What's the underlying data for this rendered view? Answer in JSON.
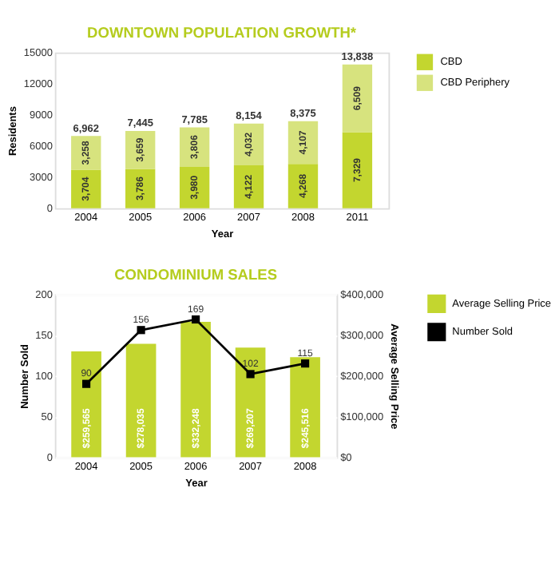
{
  "chart_data": [
    {
      "type": "bar",
      "title": "DOWNTOWN POPULATION GROWTH*",
      "xlabel": "Year",
      "ylabel": "Residents",
      "categories": [
        "2004",
        "2005",
        "2006",
        "2007",
        "2008",
        "2011"
      ],
      "stacked": true,
      "series": [
        {
          "name": "CBD",
          "color": "#c3d62f",
          "values": [
            3704,
            3786,
            3980,
            4122,
            4268,
            7329
          ],
          "value_labels": [
            "3,704",
            "3,786",
            "3,980",
            "4,122",
            "4,268",
            "7,329"
          ]
        },
        {
          "name": "CBD Periphery",
          "color": "#d7e37e",
          "values": [
            3258,
            3659,
            3806,
            4032,
            4107,
            6509
          ],
          "value_labels": [
            "3,258",
            "3,659",
            "3,806",
            "4,032",
            "4,107",
            "6,509"
          ]
        }
      ],
      "totals": [
        "6,962",
        "7,445",
        "7,785",
        "8,154",
        "8,375",
        "13,838"
      ],
      "ylim": [
        0,
        15000
      ],
      "yticks": [
        0,
        3000,
        6000,
        9000,
        12000,
        15000
      ],
      "grid": false,
      "legend": "right"
    },
    {
      "type": "bar",
      "title": "CONDOMINIUM SALES",
      "xlabel": "Year",
      "ylabel": "Number Sold",
      "y2label": "Average Selling Price",
      "categories": [
        "2004",
        "2005",
        "2006",
        "2007",
        "2008"
      ],
      "series": [
        {
          "name": "Average Selling Price",
          "type": "bar",
          "axis": "y2",
          "color": "#c3d62f",
          "values": [
            259565,
            278035,
            332248,
            269207,
            245516
          ],
          "value_labels": [
            "$259,565",
            "$278,035",
            "$332,248",
            "$269,207",
            "$245,516"
          ]
        },
        {
          "name": "Number Sold",
          "type": "line",
          "axis": "y",
          "color": "#000000",
          "marker": "square",
          "values": [
            90,
            156,
            169,
            102,
            115
          ],
          "value_labels": [
            "90",
            "156",
            "169",
            "102",
            "115"
          ]
        }
      ],
      "ylim": [
        0,
        200
      ],
      "yticks": [
        0,
        50,
        100,
        150,
        200
      ],
      "y2lim": [
        0,
        400000
      ],
      "y2ticks": [
        {
          "value": 0,
          "label": "$0"
        },
        {
          "value": 100000,
          "label": "$100,000"
        },
        {
          "value": 200000,
          "label": "$200,000"
        },
        {
          "value": 300000,
          "label": "$300,000"
        },
        {
          "value": 400000,
          "label": "$400,000"
        }
      ],
      "grid": "y",
      "legend": "right"
    }
  ]
}
